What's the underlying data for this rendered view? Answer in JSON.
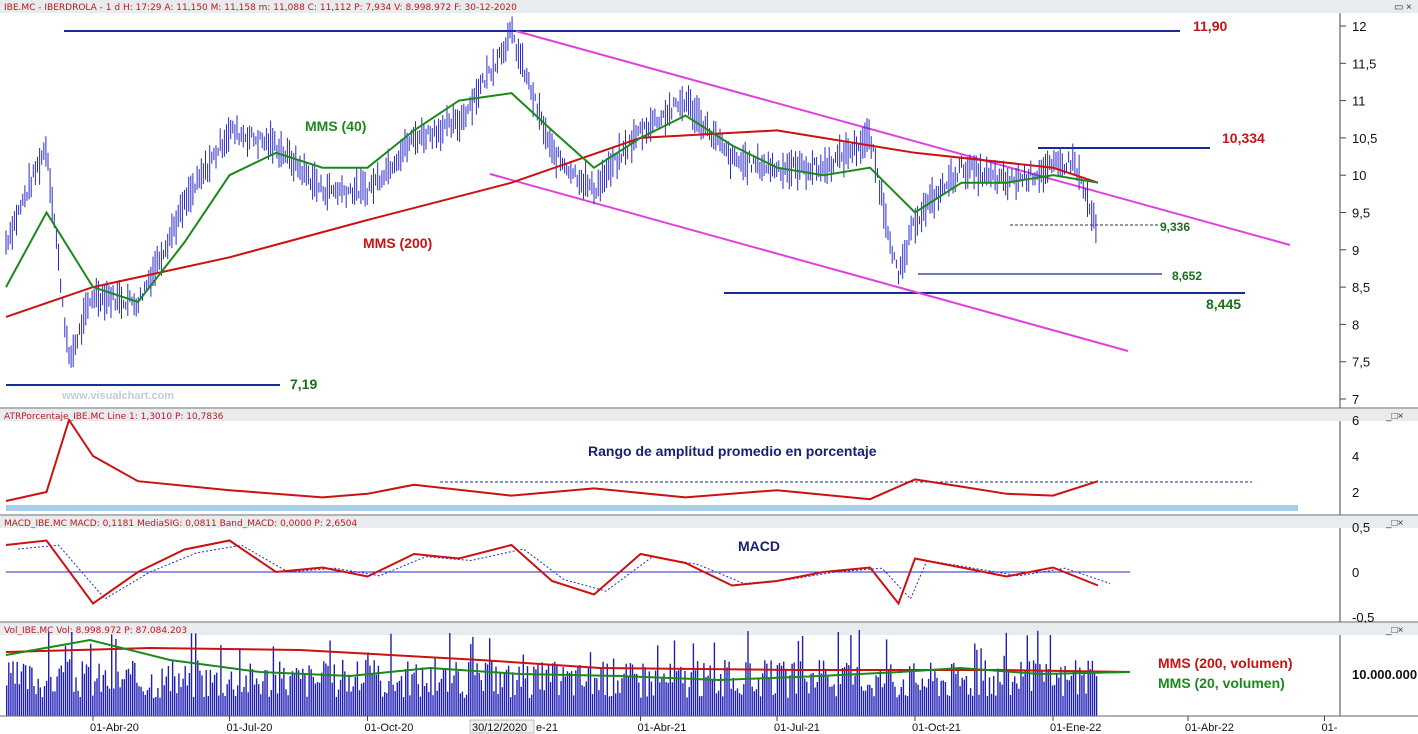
{
  "panels": {
    "price": {
      "header": "IBE.MC - IBERDROLA - 1 d H: 17:29 A: 11,150 M: 11,158 m: 11,088 C: 11,112 P: 7,934 V: 8.998.972 F: 30-12-2020",
      "watermark": "www.visualchart.com"
    },
    "atr": {
      "header": "ATRPorcentaje_IBE.MC Line 1: 1,3010 P: 10,7836",
      "title": "Rango de amplitud promedio en porcentaje"
    },
    "macd": {
      "header": "MACD_IBE.MC MACD: 0,1181 MediaSIG: 0,0811 Band_MACD: 0,0000 P: 2,6504",
      "title": "MACD"
    },
    "volume": {
      "header": "Vol_IBE.MC Vol: 8.998.972 P: 87.084.203",
      "legend_200": "MMS (200, volumen)",
      "legend_20": "MMS (20, volumen)"
    }
  },
  "x_axis": {
    "labels": [
      "01-Abr-20",
      "01-Jul-20",
      "01-Oct-20",
      "01-Abr-21",
      "01-Jul-21",
      "01-Oct-21",
      "01-Ene-22",
      "01-Abr-22",
      "01-"
    ],
    "cursor_label": "30/12/2020",
    "partial_label": "e-21"
  },
  "chart_data": [
    {
      "type": "line",
      "title": "IBE.MC - IBERDROLA",
      "y_range": [
        7,
        12
      ],
      "y_ticks": [
        "12",
        "11,5",
        "11",
        "10,5",
        "10",
        "9,5",
        "9",
        "8,5",
        "8",
        "7,5",
        "7"
      ],
      "levels": [
        {
          "label": "11,90",
          "value": 11.9,
          "color": "#c0161a"
        },
        {
          "label": "10,334",
          "value": 10.334,
          "color": "#c0161a"
        },
        {
          "label": "9,336",
          "value": 9.336,
          "color": "#1a6e1a"
        },
        {
          "label": "8,652",
          "value": 8.652,
          "color": "#1a6e1a"
        },
        {
          "label": "8,445",
          "value": 8.445,
          "color": "#1a6e1a"
        },
        {
          "label": "7,19",
          "value": 7.19,
          "color": "#1a6e1a"
        }
      ],
      "annotations": [
        "MMS (40)",
        "MMS (200)"
      ],
      "series": [
        {
          "name": "IBE.MC",
          "color": "#2a2acc",
          "x": [
            "2020-02-03",
            "2020-03-01",
            "2020-03-16",
            "2020-04-01",
            "2020-05-01",
            "2020-06-01",
            "2020-07-01",
            "2020-08-01",
            "2020-09-01",
            "2020-10-01",
            "2020-11-01",
            "2020-12-01",
            "2021-01-05",
            "2021-02-01",
            "2021-03-01",
            "2021-04-01",
            "2021-05-01",
            "2021-06-01",
            "2021-07-01",
            "2021-08-01",
            "2021-09-01",
            "2021-09-20",
            "2021-10-01",
            "2021-11-01",
            "2021-12-01",
            "2022-01-01",
            "2022-01-15",
            "2022-01-31"
          ],
          "y": [
            9.1,
            10.4,
            7.5,
            8.4,
            8.3,
            9.6,
            10.6,
            10.4,
            9.8,
            9.8,
            10.5,
            10.7,
            11.9,
            10.3,
            9.8,
            10.6,
            11.0,
            10.2,
            10.1,
            10.1,
            10.5,
            8.6,
            9.4,
            10.1,
            9.9,
            10.1,
            10.2,
            9.2
          ]
        },
        {
          "name": "MMS (40)",
          "color": "#1a8a1a",
          "x": [
            "2020-02-03",
            "2020-03-01",
            "2020-04-01",
            "2020-05-01",
            "2020-06-01",
            "2020-07-01",
            "2020-08-01",
            "2020-09-01",
            "2020-10-01",
            "2020-11-01",
            "2020-12-01",
            "2021-01-05",
            "2021-02-01",
            "2021-03-01",
            "2021-04-01",
            "2021-05-01",
            "2021-06-01",
            "2021-07-01",
            "2021-08-01",
            "2021-09-01",
            "2021-10-01",
            "2021-11-01",
            "2021-12-01",
            "2022-01-01",
            "2022-01-31"
          ],
          "y": [
            8.5,
            9.5,
            8.5,
            8.3,
            9.1,
            10.0,
            10.3,
            10.1,
            10.1,
            10.6,
            11.0,
            11.1,
            10.6,
            10.1,
            10.5,
            10.8,
            10.4,
            10.1,
            10.0,
            10.1,
            9.5,
            9.9,
            9.9,
            10.0,
            9.9
          ]
        },
        {
          "name": "MMS (200)",
          "color": "#cc1111",
          "x": [
            "2020-02-03",
            "2020-04-01",
            "2020-07-01",
            "2020-10-01",
            "2021-01-05",
            "2021-04-01",
            "2021-07-01",
            "2021-10-01",
            "2022-01-01",
            "2022-01-31"
          ],
          "y": [
            8.1,
            8.5,
            8.9,
            9.4,
            9.9,
            10.5,
            10.6,
            10.3,
            10.1,
            9.9
          ]
        }
      ]
    },
    {
      "type": "line",
      "title": "Rango de amplitud promedio en porcentaje",
      "y_range": [
        1,
        6
      ],
      "y_ticks": [
        "6",
        "4",
        "2"
      ],
      "series": [
        {
          "name": "ATRPorcentaje_IBE.MC",
          "color": "#cc1111",
          "x": [
            "2020-02-03",
            "2020-03-01",
            "2020-03-16",
            "2020-04-01",
            "2020-05-01",
            "2020-07-01",
            "2020-09-01",
            "2020-10-01",
            "2020-11-01",
            "2021-01-05",
            "2021-03-01",
            "2021-05-01",
            "2021-07-01",
            "2021-09-01",
            "2021-10-01",
            "2021-11-01",
            "2021-12-01",
            "2022-01-01",
            "2022-01-31"
          ],
          "y": [
            1.5,
            2.0,
            6.0,
            4.0,
            2.6,
            2.1,
            1.7,
            1.9,
            2.4,
            1.8,
            2.2,
            1.7,
            2.1,
            1.6,
            2.7,
            2.3,
            1.9,
            1.8,
            2.6
          ]
        }
      ]
    },
    {
      "type": "line",
      "title": "MACD",
      "y_range": [
        -0.5,
        0.5
      ],
      "y_ticks": [
        "0,5",
        "0",
        "-0,5"
      ],
      "series": [
        {
          "name": "MACD",
          "color": "#cc1111",
          "x": [
            "2020-02-03",
            "2020-03-01",
            "2020-04-01",
            "2020-05-01",
            "2020-06-01",
            "2020-07-01",
            "2020-08-01",
            "2020-09-01",
            "2020-10-01",
            "2020-11-01",
            "2020-12-01",
            "2021-01-05",
            "2021-02-01",
            "2021-03-01",
            "2021-04-01",
            "2021-05-01",
            "2021-06-01",
            "2021-07-01",
            "2021-08-01",
            "2021-09-01",
            "2021-09-20",
            "2021-10-01",
            "2021-11-01",
            "2021-12-01",
            "2022-01-01",
            "2022-01-31"
          ],
          "y": [
            0.3,
            0.35,
            -0.35,
            0.0,
            0.25,
            0.35,
            0.0,
            0.05,
            -0.05,
            0.2,
            0.15,
            0.3,
            -0.1,
            -0.25,
            0.2,
            0.1,
            -0.15,
            -0.1,
            0.0,
            0.05,
            -0.35,
            0.15,
            0.05,
            -0.05,
            0.05,
            -0.15
          ]
        }
      ]
    },
    {
      "type": "bar",
      "title": "Vol_IBE.MC",
      "y_ticks": [
        "10.000.000"
      ],
      "series": [
        {
          "name": "MMS (200, volumen)",
          "color": "#cc1111"
        },
        {
          "name": "MMS (20, volumen)",
          "color": "#1a8a1a"
        }
      ]
    }
  ]
}
